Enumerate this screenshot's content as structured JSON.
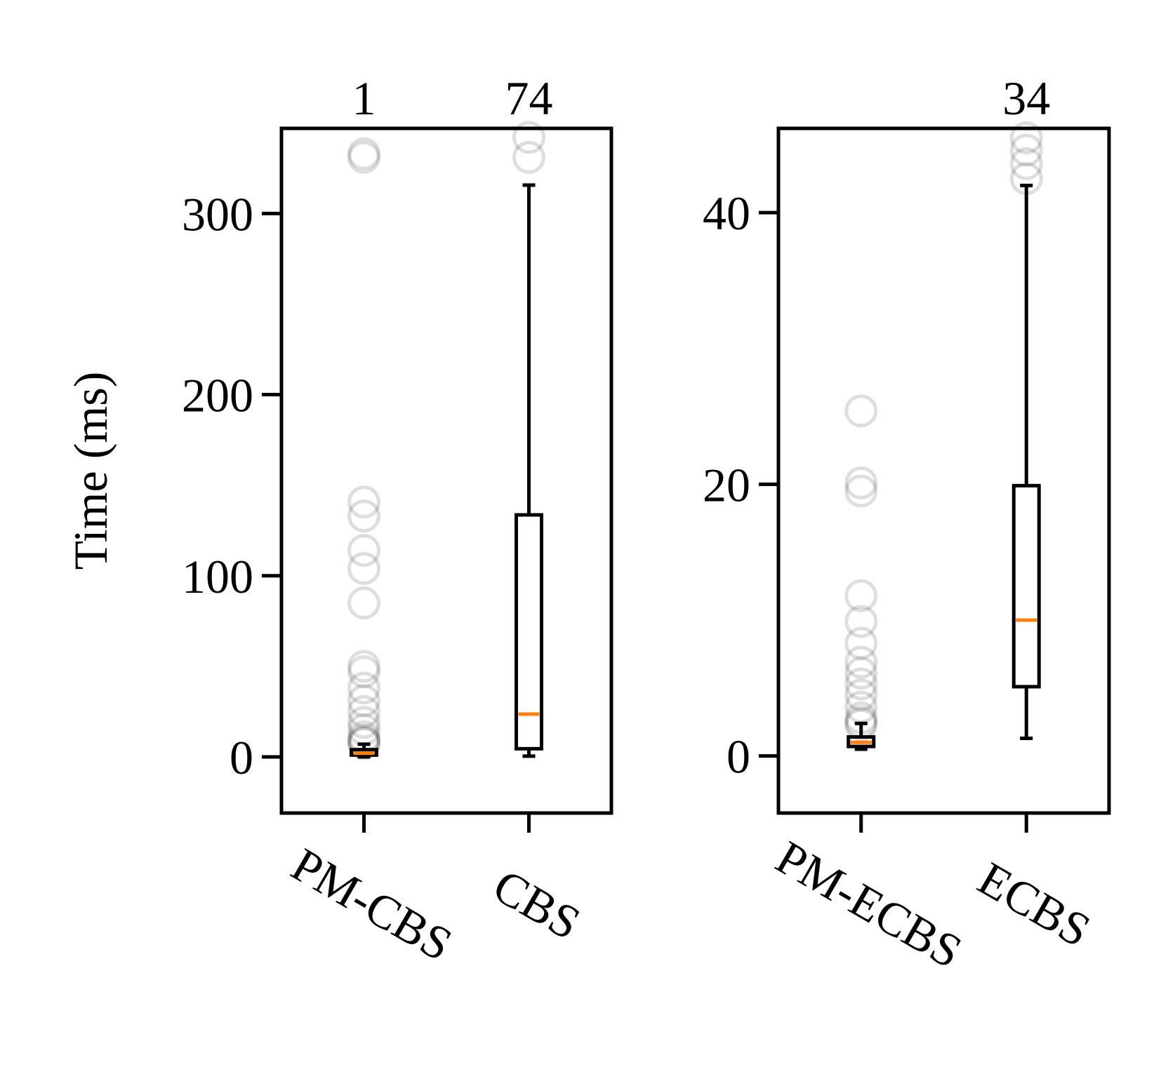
{
  "chart_data": [
    {
      "type": "box",
      "ylabel": "Time (ms)",
      "categories": [
        "PM-CBS",
        "CBS"
      ],
      "counts": [
        1,
        74
      ],
      "boxes": [
        {
          "whislo": 0,
          "q1": 1,
          "med": 2,
          "q3": 4,
          "whishi": 7,
          "fliers": [
            331,
            333,
            140.7,
            133,
            114,
            104,
            85,
            50,
            47,
            38,
            31,
            25,
            19,
            15,
            11,
            9,
            8,
            7.5
          ]
        },
        {
          "whislo": 0.4,
          "q1": 4.5,
          "med": 23.6,
          "q3": 133.6,
          "whishi": 315.7,
          "fliers": [
            331,
            342
          ]
        }
      ],
      "ylim": [
        -31,
        347
      ],
      "yticks": [
        0,
        100,
        200,
        300
      ],
      "median_color": "#ff7f0e"
    },
    {
      "type": "box",
      "categories": [
        "PM-ECBS",
        "ECBS"
      ],
      "counts": [
        null,
        34
      ],
      "boxes": [
        {
          "whislo": 0.5,
          "q1": 0.7,
          "med": 1.0,
          "q3": 1.4,
          "whishi": 2.4,
          "fliers": [
            25.4,
            20.1,
            19.5,
            11.8,
            9.9,
            8.3,
            6.9,
            6.1,
            5.3,
            4.5,
            3.6,
            2.8,
            2.5,
            2.3
          ]
        },
        {
          "whislo": 1.3,
          "q1": 5.1,
          "med": 10.0,
          "q3": 19.9,
          "whishi": 42.0,
          "fliers": [
            42.5,
            43.6,
            44.6,
            45.5
          ]
        }
      ],
      "ylim": [
        -4.2,
        46.2
      ],
      "yticks": [
        0,
        20,
        40
      ],
      "median_color": "#ff7f0e"
    }
  ]
}
